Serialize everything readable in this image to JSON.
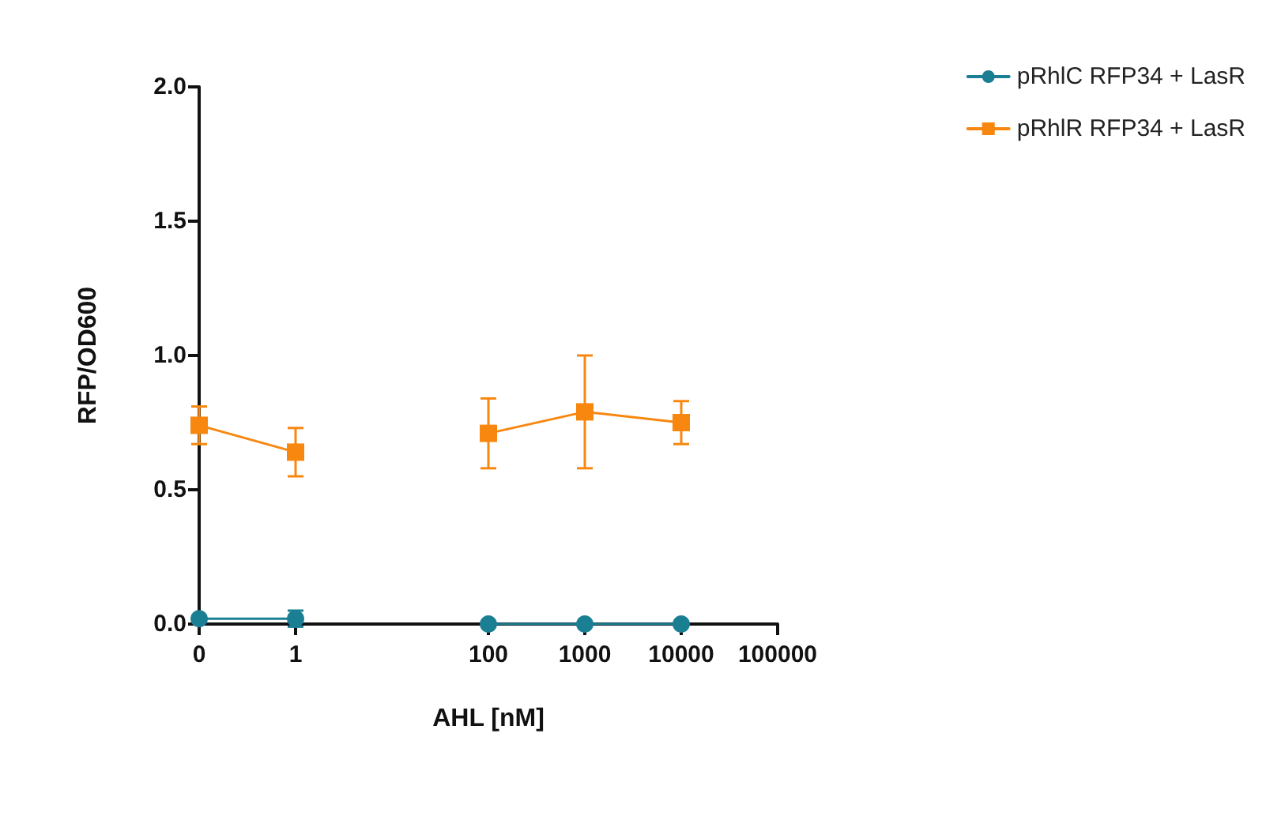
{
  "chart_data": {
    "type": "line",
    "xlabel": "AHL [nM]",
    "ylabel": "RFP/OD600",
    "categories": [
      "0",
      "1",
      null,
      "100",
      "1000",
      "10000",
      "100000"
    ],
    "series": [
      {
        "name": "pRhlC RFP34 + LasR",
        "color": "#1b7f94",
        "marker": "circle",
        "values": [
          0.02,
          0.02,
          null,
          0,
          0,
          0,
          null
        ],
        "errors": [
          0.01,
          0.03,
          null,
          null,
          null,
          null,
          null
        ]
      },
      {
        "name": "pRhlR RFP34 + LasR",
        "color": "#f7870f",
        "marker": "square",
        "values": [
          0.74,
          0.64,
          null,
          0.71,
          0.79,
          0.75,
          null
        ],
        "errors": [
          0.07,
          0.09,
          null,
          0.13,
          0.21,
          0.08,
          null
        ]
      }
    ],
    "ylim": [
      0,
      2
    ],
    "yticks": [
      {
        "value": 0,
        "label": "0.0"
      },
      {
        "value": 0.5,
        "label": "0.5"
      },
      {
        "value": 1,
        "label": "1.0"
      },
      {
        "value": 1.5,
        "label": "1.5"
      },
      {
        "value": 2,
        "label": "2.0"
      }
    ],
    "grid": false,
    "legend": "top right",
    "line_style": "solid"
  }
}
